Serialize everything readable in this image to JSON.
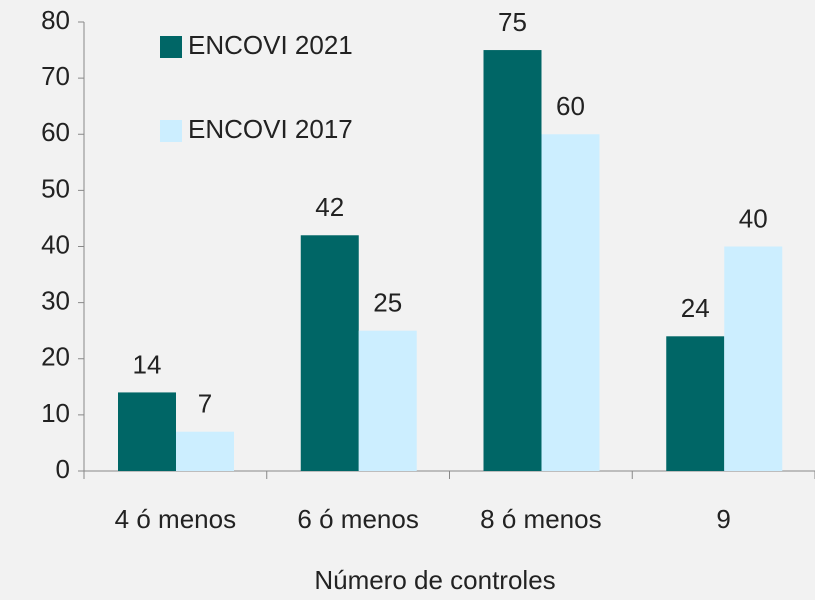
{
  "chart_data": {
    "type": "bar",
    "x_label": "Número de controles",
    "categories": [
      "4 ó menos",
      "6 ó menos",
      "8 ó menos",
      "9"
    ],
    "series": [
      {
        "name": "ENCOVI 2021",
        "color": "#006666",
        "values": [
          14,
          42,
          75,
          24
        ]
      },
      {
        "name": "ENCOVI 2017",
        "color": "#cceeff",
        "values": [
          7,
          25,
          60,
          40
        ]
      }
    ],
    "ylim": [
      0,
      80
    ],
    "yticks": [
      0,
      10,
      20,
      30,
      40,
      50,
      60,
      70,
      80
    ],
    "grid": false,
    "legend": "top-left"
  }
}
